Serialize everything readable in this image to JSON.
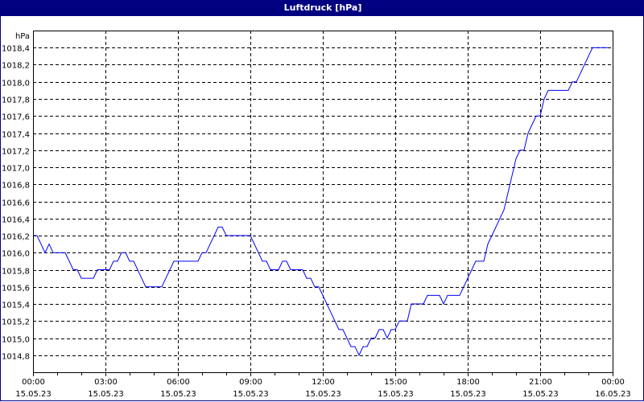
{
  "window": {
    "title": "Luftdruck [hPa]"
  },
  "chart_data": {
    "type": "line",
    "title": "Luftdruck [hPa]",
    "ylabel": "hPa",
    "ylim": [
      1014.6,
      1018.6
    ],
    "yticks": [
      1014.8,
      1015.0,
      1015.2,
      1015.4,
      1015.6,
      1015.8,
      1016.0,
      1016.2,
      1016.4,
      1016.6,
      1016.8,
      1017.0,
      1017.2,
      1017.4,
      1017.6,
      1017.8,
      1018.0,
      1018.2,
      1018.4
    ],
    "ytick_labels": [
      "1014,8",
      "1015,0",
      "1015,2",
      "1015,4",
      "1015,6",
      "1015,8",
      "1016,0",
      "1016,2",
      "1016,4",
      "1016,6",
      "1016,8",
      "1017,0",
      "1017,2",
      "1017,4",
      "1017,6",
      "1017,8",
      "1018,0",
      "1018,2",
      "1018,4"
    ],
    "xlim": [
      "15.05.23 00:00",
      "16.05.23 00:00"
    ],
    "xticks": [
      {
        "time": "00:00",
        "date": "15.05.23"
      },
      {
        "time": "03:00",
        "date": "15.05.23"
      },
      {
        "time": "06:00",
        "date": "15.05.23"
      },
      {
        "time": "09:00",
        "date": "15.05.23"
      },
      {
        "time": "12:00",
        "date": "15.05.23"
      },
      {
        "time": "15:00",
        "date": "15.05.23"
      },
      {
        "time": "18:00",
        "date": "15.05.23"
      },
      {
        "time": "21:00",
        "date": "15.05.23"
      },
      {
        "time": "00:00",
        "date": "16.05.23"
      }
    ],
    "grid": true,
    "line_color": "#0000ff",
    "title_bar_color": "#000080",
    "x": [
      "00:00",
      "00:10",
      "00:30",
      "00:40",
      "00:50",
      "01:20",
      "01:40",
      "01:50",
      "02:00",
      "02:30",
      "02:40",
      "03:10",
      "03:20",
      "03:30",
      "03:40",
      "03:50",
      "04:00",
      "04:10",
      "04:40",
      "05:20",
      "05:50",
      "06:50",
      "07:00",
      "07:10",
      "07:40",
      "07:50",
      "08:00",
      "09:00",
      "09:30",
      "09:40",
      "09:50",
      "10:10",
      "10:20",
      "10:30",
      "10:40",
      "11:10",
      "11:20",
      "11:30",
      "11:40",
      "11:50",
      "12:40",
      "12:50",
      "13:10",
      "13:20",
      "13:30",
      "13:40",
      "13:50",
      "14:00",
      "14:10",
      "14:20",
      "14:30",
      "14:40",
      "14:50",
      "15:00",
      "15:10",
      "15:30",
      "15:40",
      "16:10",
      "16:20",
      "16:50",
      "17:00",
      "17:10",
      "17:40",
      "18:00",
      "18:20",
      "18:40",
      "18:50",
      "19:00",
      "19:30",
      "19:40",
      "20:00",
      "20:10",
      "20:20",
      "20:30",
      "20:50",
      "21:00",
      "21:10",
      "21:20",
      "22:10",
      "22:20",
      "22:30",
      "23:10",
      "23:50"
    ],
    "values": [
      1016.2,
      1016.2,
      1016.0,
      1016.1,
      1016.0,
      1016.0,
      1015.8,
      1015.8,
      1015.7,
      1015.7,
      1015.8,
      1015.8,
      1015.9,
      1015.9,
      1016.0,
      1016.0,
      1015.9,
      1015.9,
      1015.6,
      1015.6,
      1015.9,
      1015.9,
      1016.0,
      1016.0,
      1016.3,
      1016.3,
      1016.2,
      1016.2,
      1015.9,
      1015.9,
      1015.8,
      1015.8,
      1015.9,
      1015.9,
      1015.8,
      1015.8,
      1015.7,
      1015.7,
      1015.6,
      1015.6,
      1015.1,
      1015.1,
      1014.9,
      1014.9,
      1014.8,
      1014.9,
      1014.9,
      1015.0,
      1015.0,
      1015.1,
      1015.1,
      1015.0,
      1015.1,
      1015.1,
      1015.2,
      1015.2,
      1015.4,
      1015.4,
      1015.5,
      1015.5,
      1015.4,
      1015.5,
      1015.5,
      1015.7,
      1015.9,
      1015.9,
      1016.1,
      1016.2,
      1016.5,
      1016.7,
      1017.1,
      1017.2,
      1017.2,
      1017.4,
      1017.6,
      1017.6,
      1017.8,
      1017.9,
      1017.9,
      1018.0,
      1018.0,
      1018.4,
      1018.4
    ]
  }
}
